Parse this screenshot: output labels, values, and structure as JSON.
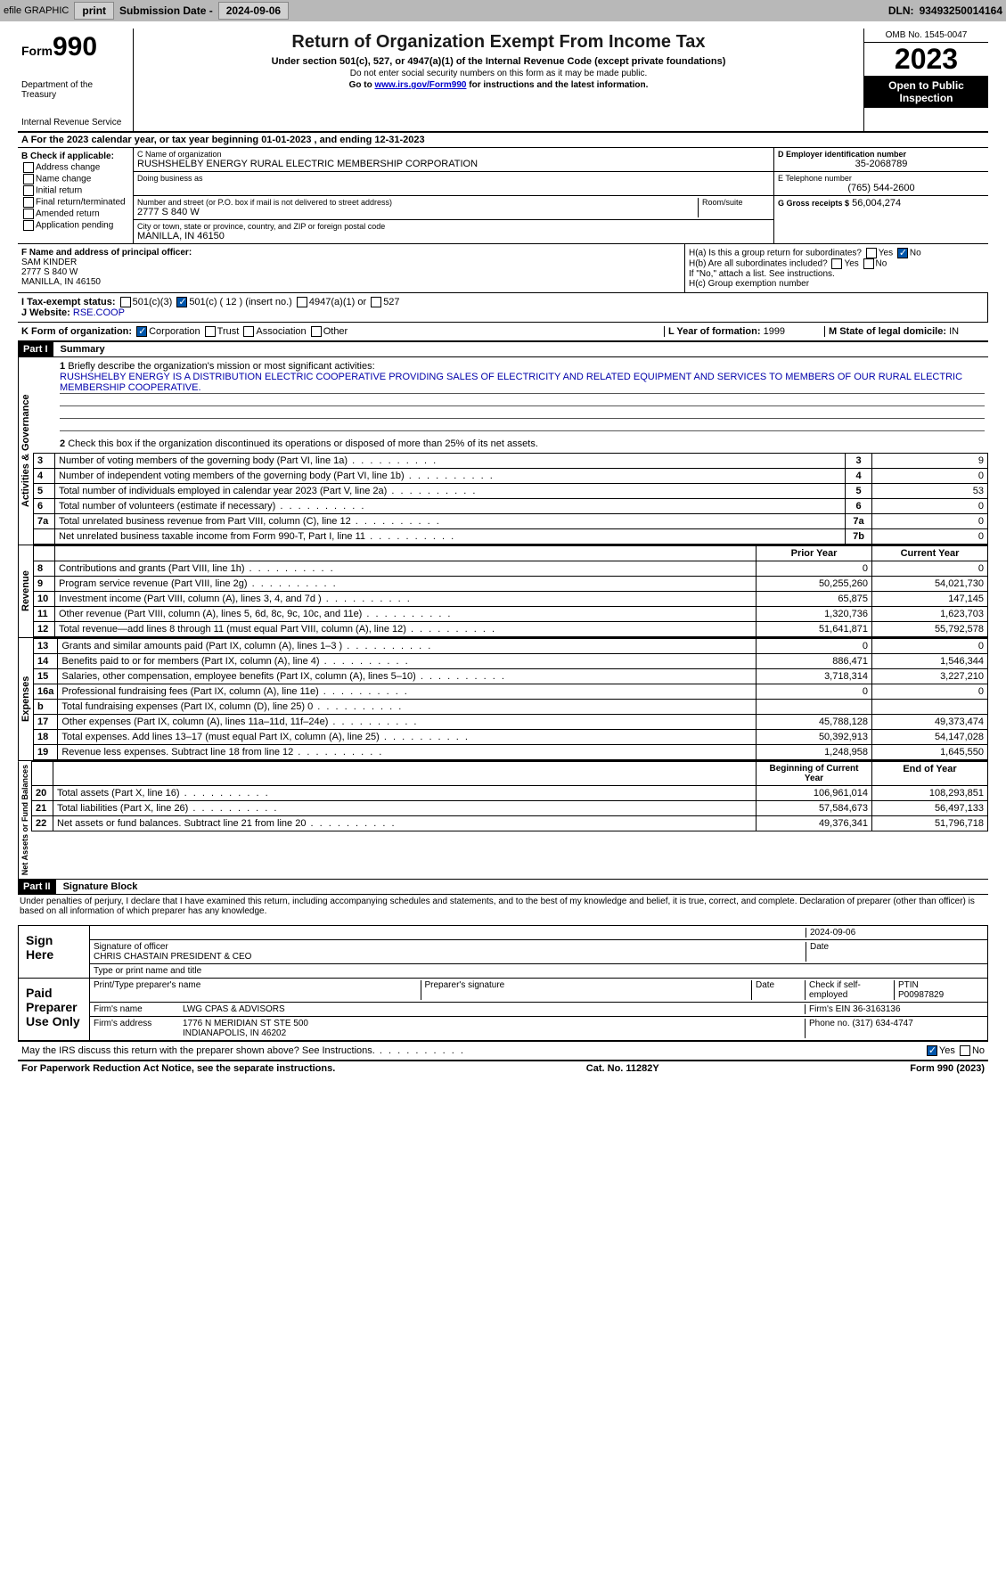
{
  "header": {
    "efile": "efile GRAPHIC",
    "print": "print",
    "sub_label": "Submission Date -",
    "sub_date": "2024-09-06",
    "dln_label": "DLN:",
    "dln": "93493250014164"
  },
  "top": {
    "form_word": "Form",
    "form_num": "990",
    "title": "Return of Organization Exempt From Income Tax",
    "subtitle": "Under section 501(c), 527, or 4947(a)(1) of the Internal Revenue Code (except private foundations)",
    "warn": "Do not enter social security numbers on this form as it may be made public.",
    "goto": "Go to",
    "goto_url": "www.irs.gov/Form990",
    "goto_rest": "for instructions and the latest information.",
    "dept": "Department of the Treasury",
    "irs": "Internal Revenue Service",
    "omb": "OMB No. 1545-0047",
    "year": "2023",
    "open1": "Open to Public",
    "open2": "Inspection"
  },
  "row_a": "A For the 2023 calendar year, or tax year beginning 01-01-2023   , and ending 12-31-2023",
  "col_b": {
    "title": "B Check if applicable:",
    "items": [
      "Address change",
      "Name change",
      "Initial return",
      "Final return/terminated",
      "Amended return",
      "Application pending"
    ]
  },
  "col_c": {
    "name_lbl": "C Name of organization",
    "name": "RUSHSHELBY ENERGY RURAL ELECTRIC MEMBERSHIP CORPORATION",
    "dba_lbl": "Doing business as",
    "addr_lbl": "Number and street (or P.O. box if mail is not delivered to street address)",
    "room_lbl": "Room/suite",
    "addr": "2777 S 840 W",
    "city_lbl": "City or town, state or province, country, and ZIP or foreign postal code",
    "city": "MANILLA, IN  46150"
  },
  "col_d": {
    "d_lbl": "D Employer identification number",
    "ein": "35-2068789",
    "e_lbl": "E Telephone number",
    "phone": "(765) 544-2600",
    "g_lbl": "G Gross receipts $",
    "gross": "56,004,274"
  },
  "fg": {
    "f_lbl": "F  Name and address of principal officer:",
    "f_name": "SAM KINDER",
    "f_addr": "2777 S 840 W",
    "f_city": "MANILLA, IN  46150",
    "ha": "H(a)  Is this a group return for subordinates?",
    "hb": "H(b)  Are all subordinates included?",
    "hb_note": "If \"No,\" attach a list. See instructions.",
    "hc": "H(c)  Group exemption number",
    "yes": "Yes",
    "no": "No"
  },
  "ij": {
    "i_lbl": "I  Tax-exempt status:",
    "i_501c3": "501(c)(3)",
    "i_501c": "501(c) ( 12 ) (insert no.)",
    "i_4947": "4947(a)(1) or",
    "i_527": "527",
    "j_lbl": "J  Website:",
    "j_val": "RSE.COOP"
  },
  "k": {
    "k_lbl": "K Form of organization:",
    "corp": "Corporation",
    "trust": "Trust",
    "assoc": "Association",
    "other": "Other",
    "l_lbl": "L Year of formation:",
    "l_val": "1999",
    "m_lbl": "M State of legal domicile:",
    "m_val": "IN"
  },
  "part1": {
    "hdr": "Part I",
    "title": "Summary",
    "q1": "Briefly describe the organization's mission or most significant activities:",
    "mission": "RUSHSHELBY ENERGY IS A DISTRIBUTION ELECTRIC COOPERATIVE PROVIDING SALES OF ELECTRICITY AND RELATED EQUIPMENT AND SERVICES TO MEMBERS OF OUR RURAL ELECTRIC MEMBERSHIP COOPERATIVE.",
    "q2": "Check this box       if the organization discontinued its operations or disposed of more than 25% of its net assets.",
    "vlabel_ag": "Activities & Governance",
    "vlabel_rev": "Revenue",
    "vlabel_exp": "Expenses",
    "vlabel_net": "Net Assets or Fund Balances",
    "lines_ag": [
      {
        "n": "3",
        "d": "Number of voting members of the governing body (Part VI, line 1a)",
        "c": "3",
        "v": "9"
      },
      {
        "n": "4",
        "d": "Number of independent voting members of the governing body (Part VI, line 1b)",
        "c": "4",
        "v": "0"
      },
      {
        "n": "5",
        "d": "Total number of individuals employed in calendar year 2023 (Part V, line 2a)",
        "c": "5",
        "v": "53"
      },
      {
        "n": "6",
        "d": "Total number of volunteers (estimate if necessary)",
        "c": "6",
        "v": "0"
      },
      {
        "n": "7a",
        "d": "Total unrelated business revenue from Part VIII, column (C), line 12",
        "c": "7a",
        "v": "0"
      },
      {
        "n": "",
        "d": "Net unrelated business taxable income from Form 990-T, Part I, line 11",
        "c": "7b",
        "v": "0"
      }
    ],
    "prior_hdr": "Prior Year",
    "curr_hdr": "Current Year",
    "lines_rev": [
      {
        "n": "8",
        "d": "Contributions and grants (Part VIII, line 1h)",
        "p": "0",
        "c": "0"
      },
      {
        "n": "9",
        "d": "Program service revenue (Part VIII, line 2g)",
        "p": "50,255,260",
        "c": "54,021,730"
      },
      {
        "n": "10",
        "d": "Investment income (Part VIII, column (A), lines 3, 4, and 7d )",
        "p": "65,875",
        "c": "147,145"
      },
      {
        "n": "11",
        "d": "Other revenue (Part VIII, column (A), lines 5, 6d, 8c, 9c, 10c, and 11e)",
        "p": "1,320,736",
        "c": "1,623,703"
      },
      {
        "n": "12",
        "d": "Total revenue—add lines 8 through 11 (must equal Part VIII, column (A), line 12)",
        "p": "51,641,871",
        "c": "55,792,578"
      }
    ],
    "lines_exp": [
      {
        "n": "13",
        "d": "Grants and similar amounts paid (Part IX, column (A), lines 1–3 )",
        "p": "0",
        "c": "0"
      },
      {
        "n": "14",
        "d": "Benefits paid to or for members (Part IX, column (A), line 4)",
        "p": "886,471",
        "c": "1,546,344"
      },
      {
        "n": "15",
        "d": "Salaries, other compensation, employee benefits (Part IX, column (A), lines 5–10)",
        "p": "3,718,314",
        "c": "3,227,210"
      },
      {
        "n": "16a",
        "d": "Professional fundraising fees (Part IX, column (A), line 11e)",
        "p": "0",
        "c": "0"
      },
      {
        "n": "b",
        "d": "Total fundraising expenses (Part IX, column (D), line 25) 0",
        "p": "",
        "c": "",
        "grey": true
      },
      {
        "n": "17",
        "d": "Other expenses (Part IX, column (A), lines 11a–11d, 11f–24e)",
        "p": "45,788,128",
        "c": "49,373,474"
      },
      {
        "n": "18",
        "d": "Total expenses. Add lines 13–17 (must equal Part IX, column (A), line 25)",
        "p": "50,392,913",
        "c": "54,147,028"
      },
      {
        "n": "19",
        "d": "Revenue less expenses. Subtract line 18 from line 12",
        "p": "1,248,958",
        "c": "1,645,550"
      }
    ],
    "net_hdr1": "Beginning of Current Year",
    "net_hdr2": "End of Year",
    "lines_net": [
      {
        "n": "20",
        "d": "Total assets (Part X, line 16)",
        "p": "106,961,014",
        "c": "108,293,851"
      },
      {
        "n": "21",
        "d": "Total liabilities (Part X, line 26)",
        "p": "57,584,673",
        "c": "56,497,133"
      },
      {
        "n": "22",
        "d": "Net assets or fund balances. Subtract line 21 from line 20",
        "p": "49,376,341",
        "c": "51,796,718"
      }
    ]
  },
  "part2": {
    "hdr": "Part II",
    "title": "Signature Block",
    "decl": "Under penalties of perjury, I declare that I have examined this return, including accompanying schedules and statements, and to the best of my knowledge and belief, it is true, correct, and complete. Declaration of preparer (other than officer) is based on all information of which preparer has any knowledge.",
    "sign_here": "Sign Here",
    "sig_lbl": "Signature of officer",
    "date_lbl": "Date",
    "sig_date": "2024-09-06",
    "officer": "CHRIS CHASTAIN  PRESIDENT & CEO",
    "type_lbl": "Type or print name and title",
    "paid": "Paid Preparer Use Only",
    "prep_name_lbl": "Print/Type preparer's name",
    "prep_sig_lbl": "Preparer's signature",
    "check_se": "Check       if self-employed",
    "ptin_lbl": "PTIN",
    "ptin": "P00987829",
    "firm_name_lbl": "Firm's name",
    "firm_name": "LWG CPAS & ADVISORS",
    "firm_ein_lbl": "Firm's EIN",
    "firm_ein": "36-3163136",
    "firm_addr_lbl": "Firm's address",
    "firm_addr": "1776 N MERIDIAN ST STE 500",
    "firm_city": "INDIANAPOLIS, IN  46202",
    "phone_lbl": "Phone no.",
    "phone": "(317) 634-4747",
    "discuss": "May the IRS discuss this return with the preparer shown above? See Instructions."
  },
  "footer": {
    "pra": "For Paperwork Reduction Act Notice, see the separate instructions.",
    "cat": "Cat. No. 11282Y",
    "form": "Form 990 (2023)"
  },
  "colors": {
    "hdr_bg": "#b8b8b8",
    "link": "#0000cc",
    "text_blue": "#0000aa"
  }
}
